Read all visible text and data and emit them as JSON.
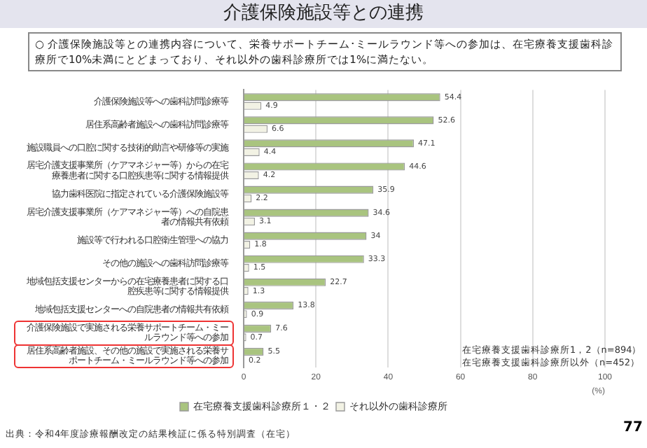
{
  "chart_data": {
    "type": "bar",
    "orientation": "horizontal",
    "title": "介護保険施設等との連携",
    "subtitle": "○ 介護保険施設等との連携内容について、栄養サポートチーム･ミールラウンド等への参加は、在宅療養支援歯科診療所で10%未満にとどまっており、それ以外の歯科診療所では1%に満たない。",
    "categories": [
      "介護保険施設等への歯科訪問診療等",
      "居住系高齢者施設への歯科訪問診療等",
      "施設職員への口腔に関する技術的助言や研修等の実施",
      "居宅介護支援事業所（ケアマネジャー等）からの在宅療養患者に関する口腔疾患等に関する情報提供",
      "協力歯科医院に指定されている介護保険施設等",
      "居宅介護支援事業所（ケアマネジャー等）への自院患者の情報共有依頼",
      "施設等で行われる口腔衛生管理への協力",
      "その他の施設への歯科訪問診療等",
      "地域包括支援センターからの在宅療養患者に関する口腔疾患等に関する情報提供",
      "地域包括支援センターへの自院患者の情報共有依頼",
      "介護保険施設で実施される栄養サポートチーム・ミールラウンド等への参加",
      "居住系高齢者施設、その他の施設で実施される栄養サポートチーム・ミールラウンド等への参加"
    ],
    "series": [
      {
        "name": "在宅療養支援歯科診療所１・２",
        "color": "#a9c47f",
        "values": [
          54.4,
          52.6,
          47.1,
          44.6,
          35.9,
          34.6,
          34.0,
          33.3,
          22.7,
          13.8,
          7.6,
          5.5
        ]
      },
      {
        "name": "それ以外の歯科診療所",
        "color": "#f2f2e4",
        "values": [
          4.9,
          6.6,
          4.4,
          4.2,
          2.2,
          3.1,
          1.8,
          1.5,
          1.3,
          0.9,
          0.7,
          0.2
        ]
      }
    ],
    "xlim": [
      0,
      100
    ],
    "xticks": [
      0,
      20,
      40,
      60,
      80,
      100
    ],
    "xlabel": "(%)",
    "grid": "x",
    "legend": "bottom",
    "data_labels": true,
    "annotations": [
      "在宅療養支援歯科診療所1，2（n=894）",
      "在宅療養支援歯科診療所以外（n=452）",
      "出典：令和4年度診療報酬改定の結果検証に係る特別調査（在宅）",
      "77"
    ]
  }
}
